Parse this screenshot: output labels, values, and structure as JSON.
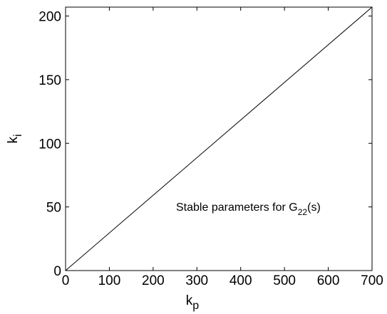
{
  "chart_data": {
    "type": "line",
    "x_label": {
      "main": "k",
      "sub": "p"
    },
    "y_label": {
      "main": "k",
      "sub": "i"
    },
    "annotation": {
      "main": "Stable parameters for G",
      "sub": "22",
      "tail": "(s)"
    },
    "x": [
      0,
      700
    ],
    "series": [
      {
        "color": "#000000",
        "values": [
          0,
          207
        ]
      }
    ],
    "xlim": [
      0,
      700
    ],
    "xticks": [
      0,
      100,
      200,
      300,
      400,
      500,
      600,
      700
    ],
    "ylim": [
      0,
      207
    ],
    "yticks": [
      0,
      50,
      100,
      150,
      200
    ],
    "grid": false
  }
}
